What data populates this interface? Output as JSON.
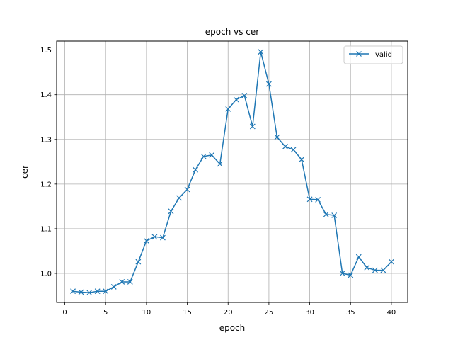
{
  "chart_data": {
    "type": "line",
    "title": "epoch vs cer",
    "xlabel": "epoch",
    "ylabel": "cer",
    "xlim": [
      -1,
      42
    ],
    "ylim": [
      0.935,
      1.52
    ],
    "xticks": [
      0,
      5,
      10,
      15,
      20,
      25,
      30,
      35,
      40
    ],
    "yticks": [
      1.0,
      1.1,
      1.2,
      1.3,
      1.4,
      1.5
    ],
    "grid": true,
    "legend_position": "upper-right",
    "series": [
      {
        "name": "valid",
        "color": "#1f77b4",
        "marker": "x",
        "x": [
          1,
          2,
          3,
          4,
          5,
          6,
          7,
          8,
          9,
          10,
          11,
          12,
          13,
          14,
          15,
          16,
          17,
          18,
          19,
          20,
          21,
          22,
          23,
          24,
          25,
          26,
          27,
          28,
          29,
          30,
          31,
          32,
          33,
          34,
          35,
          36,
          37,
          38,
          39,
          40
        ],
        "y": [
          0.96,
          0.958,
          0.957,
          0.96,
          0.96,
          0.97,
          0.981,
          0.981,
          1.026,
          1.073,
          1.082,
          1.08,
          1.139,
          1.169,
          1.188,
          1.232,
          1.262,
          1.265,
          1.245,
          1.368,
          1.389,
          1.398,
          1.329,
          1.496,
          1.424,
          1.305,
          1.284,
          1.277,
          1.255,
          1.166,
          1.165,
          1.132,
          1.13,
          1.0,
          0.996,
          1.037,
          1.013,
          1.007,
          1.007,
          1.026
        ]
      }
    ]
  }
}
